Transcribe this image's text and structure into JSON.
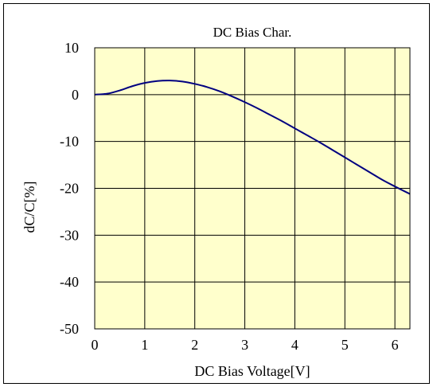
{
  "chart_data": {
    "type": "line",
    "title": "DC Bias Char.",
    "xlabel": "DC Bias Voltage[V]",
    "ylabel": "dC/C[%]",
    "xlim": [
      0,
      6.3
    ],
    "ylim": [
      -50,
      10
    ],
    "x_ticks": [
      0,
      1,
      2,
      3,
      4,
      5,
      6
    ],
    "y_ticks": [
      10,
      0,
      -10,
      -20,
      -30,
      -40,
      -50
    ],
    "grid": true,
    "legend": "none",
    "colors": {
      "plot_background": "#FFFFCC",
      "line": "#000080",
      "grid": "#000000",
      "frame": "#000000"
    },
    "series": [
      {
        "x": [
          0,
          0.25,
          0.5,
          0.75,
          1.0,
          1.25,
          1.5,
          1.75,
          2.0,
          2.25,
          2.5,
          2.75,
          3.0,
          3.25,
          3.5,
          3.75,
          4.0,
          4.25,
          4.5,
          4.75,
          5.0,
          5.25,
          5.5,
          5.75,
          6.0,
          6.3
        ],
        "values": [
          0,
          0.2,
          0.9,
          1.8,
          2.5,
          2.9,
          3.0,
          2.8,
          2.3,
          1.6,
          0.7,
          -0.4,
          -1.6,
          -2.9,
          -4.3,
          -5.7,
          -7.2,
          -8.7,
          -10.2,
          -11.8,
          -13.4,
          -15.0,
          -16.6,
          -18.2,
          -19.6,
          -21.2
        ]
      }
    ]
  }
}
